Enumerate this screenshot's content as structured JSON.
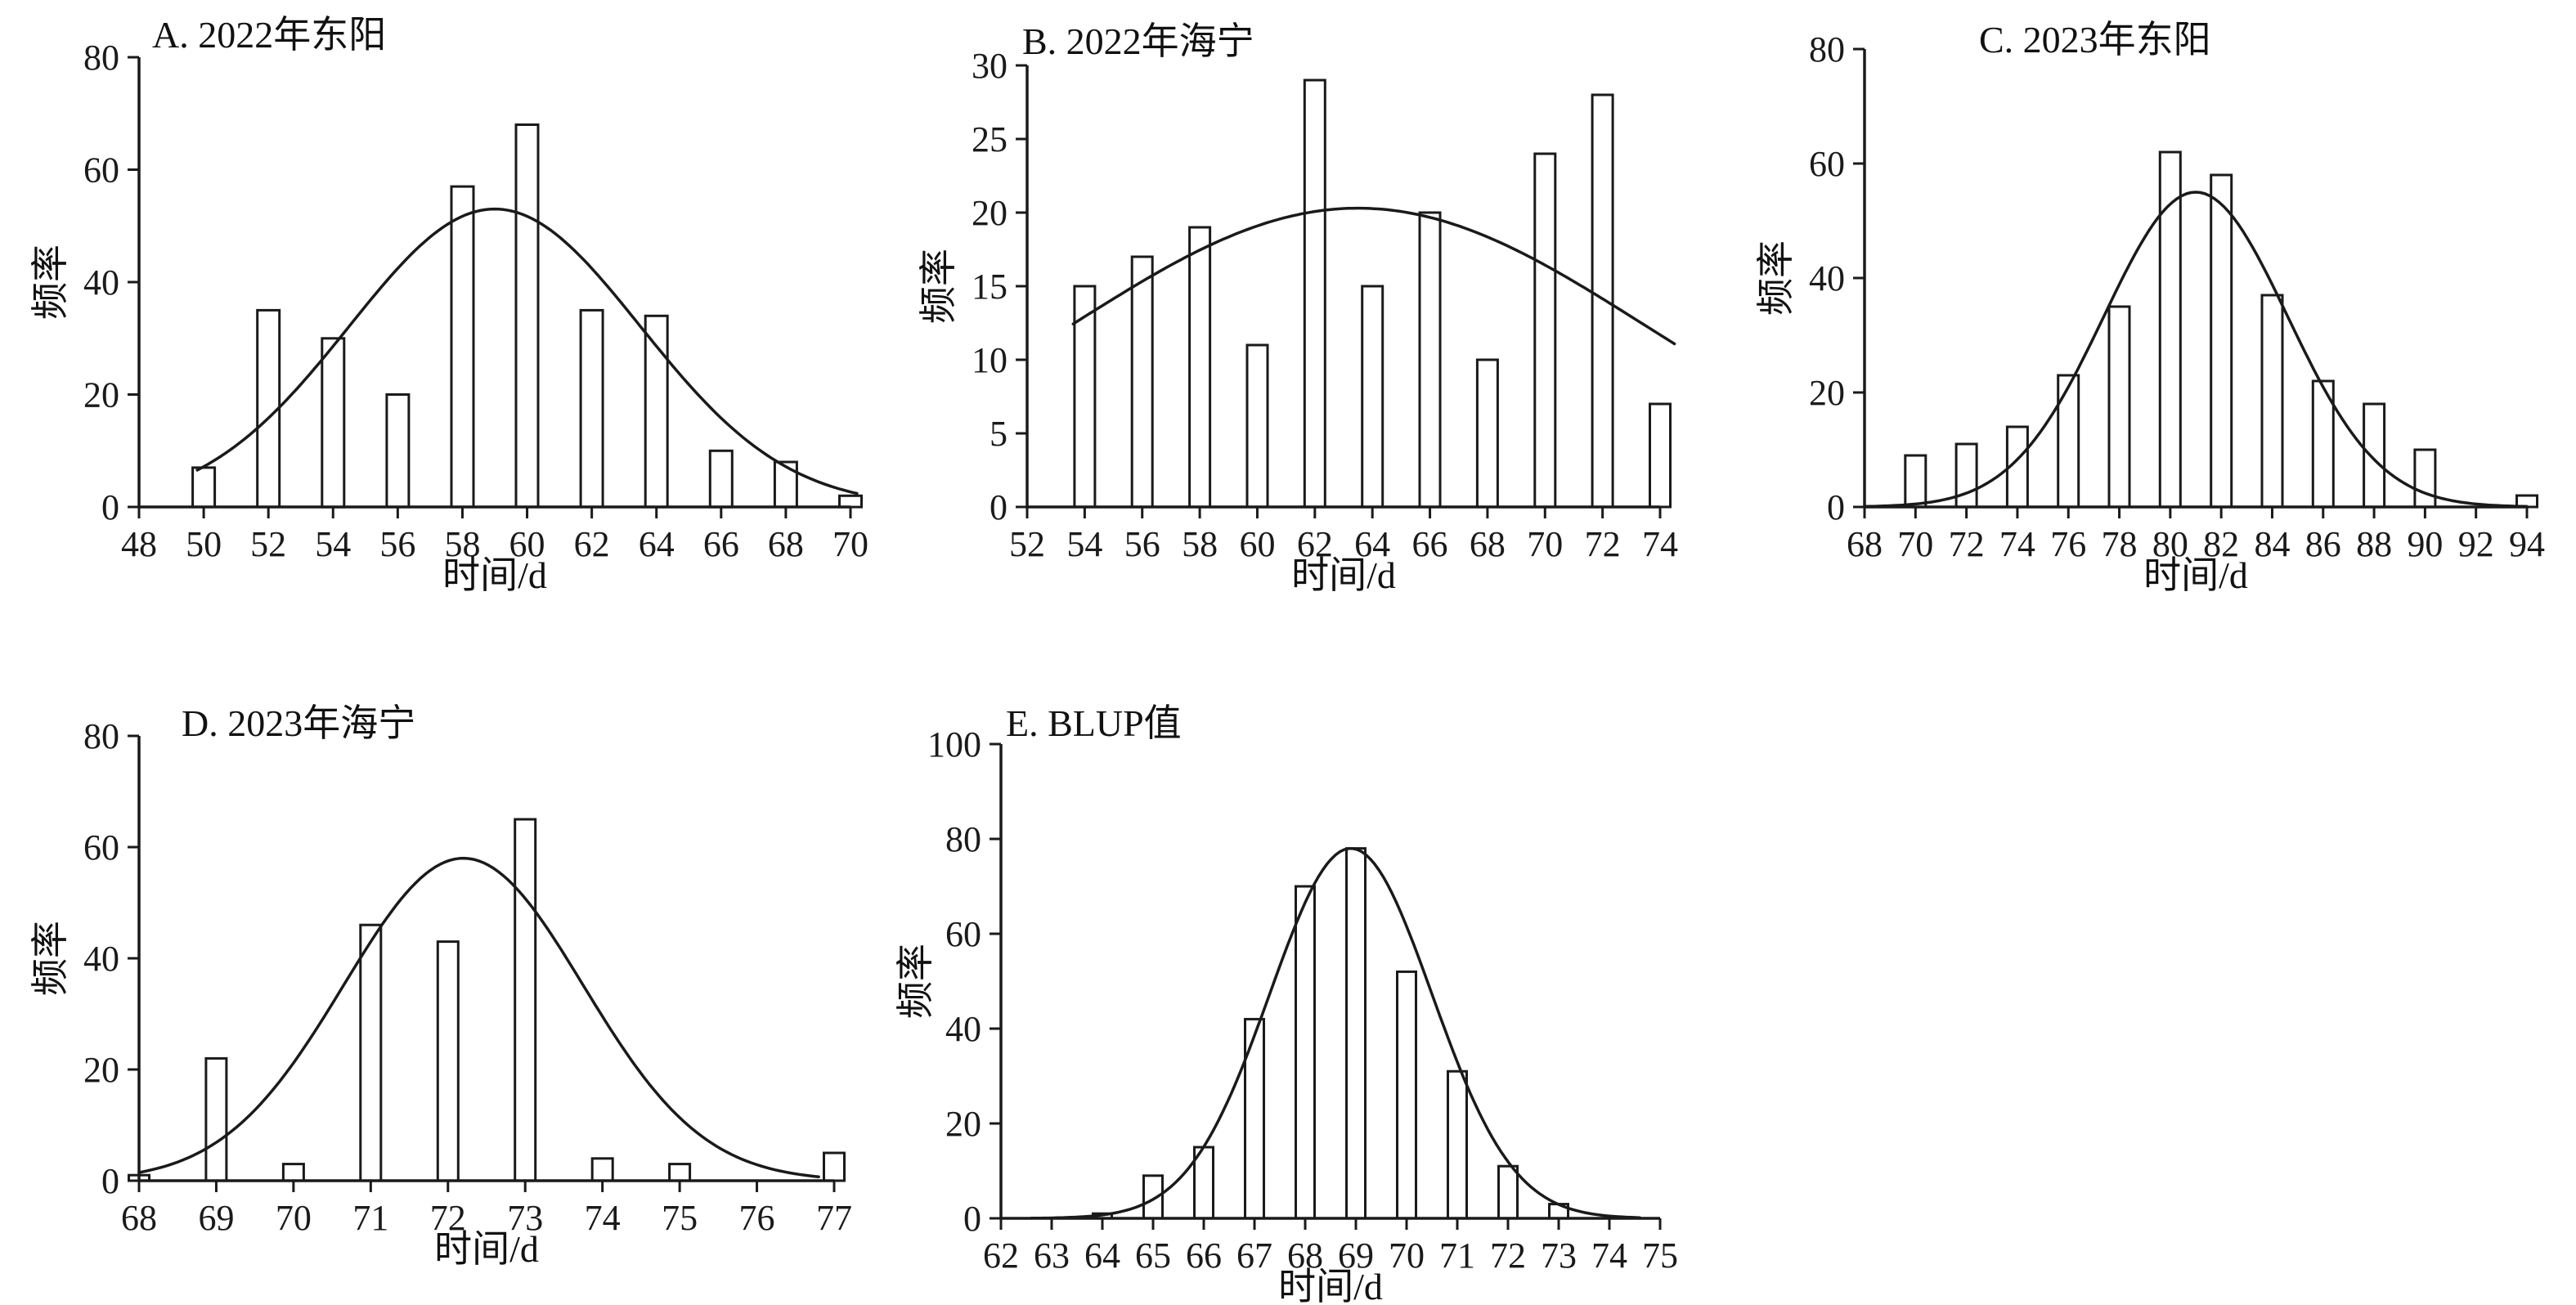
{
  "figure": {
    "background": "#ffffff",
    "ink_color": "#1a1a1a",
    "description": "频率直方图与正态拟合曲线 (5 panels)"
  },
  "chart_data": [
    {
      "id": "A",
      "type": "bar",
      "title": "A. 2022年东阳",
      "xlabel": "时间/d",
      "ylabel": "频率",
      "xlim": [
        48,
        70
      ],
      "ylim": [
        0,
        80
      ],
      "xticks": [
        48,
        50,
        52,
        54,
        56,
        58,
        60,
        62,
        64,
        66,
        68,
        70
      ],
      "yticks": [
        0,
        20,
        40,
        60,
        80
      ],
      "grid": false,
      "bars": {
        "x": [
          50,
          52,
          54,
          56,
          58,
          60,
          62,
          64,
          66,
          68,
          70
        ],
        "values": [
          7,
          35,
          30,
          20,
          57,
          68,
          35,
          34,
          10,
          8,
          2
        ]
      },
      "curve": {
        "shape": "gaussian",
        "mean": 59,
        "sd": 4.5,
        "peak": 53,
        "range": [
          49.8,
          70.2
        ]
      }
    },
    {
      "id": "B",
      "type": "bar",
      "title": "B. 2022年海宁",
      "xlabel": "时间/d",
      "ylabel": "频率",
      "xlim": [
        52,
        74
      ],
      "ylim": [
        0,
        30
      ],
      "xticks": [
        52,
        54,
        56,
        58,
        60,
        62,
        64,
        66,
        68,
        70,
        72,
        74
      ],
      "yticks": [
        0,
        5,
        10,
        15,
        20,
        25,
        30
      ],
      "grid": false,
      "bars": {
        "x": [
          54,
          56,
          58,
          60,
          62,
          64,
          66,
          68,
          70,
          72,
          74
        ],
        "values": [
          15,
          17,
          19,
          11,
          29,
          15,
          20,
          10,
          24,
          28,
          7
        ]
      },
      "curve": {
        "shape": "gaussian",
        "mean": 63.5,
        "sd": 10,
        "peak": 20.3,
        "range": [
          53.6,
          74.5
        ]
      }
    },
    {
      "id": "C",
      "type": "bar",
      "title": "C. 2023年东阳",
      "xlabel": "时间/d",
      "ylabel": "频率",
      "xlim": [
        68,
        94
      ],
      "ylim": [
        0,
        80
      ],
      "xticks": [
        68,
        70,
        72,
        74,
        76,
        78,
        80,
        82,
        84,
        86,
        88,
        90,
        92,
        94
      ],
      "yticks": [
        0,
        20,
        40,
        60,
        80
      ],
      "grid": false,
      "bars": {
        "x": [
          70,
          72,
          74,
          76,
          78,
          80,
          82,
          84,
          86,
          88,
          90,
          94
        ],
        "values": [
          9,
          11,
          14,
          23,
          35,
          62,
          58,
          37,
          22,
          18,
          10,
          2
        ]
      },
      "curve": {
        "shape": "gaussian",
        "mean": 81,
        "sd": 3.6,
        "peak": 55,
        "range": [
          68,
          94
        ]
      }
    },
    {
      "id": "D",
      "type": "bar",
      "title": "D. 2023年海宁",
      "xlabel": "时间/d",
      "ylabel": "频率",
      "xlim": [
        68,
        77
      ],
      "ylim": [
        0,
        80
      ],
      "xticks": [
        68,
        69,
        70,
        71,
        72,
        73,
        74,
        75,
        76,
        77
      ],
      "yticks": [
        0,
        20,
        40,
        60,
        80
      ],
      "grid": false,
      "bars": {
        "x": [
          68,
          69,
          70,
          71,
          72,
          73,
          74,
          75,
          77
        ],
        "values": [
          1,
          22,
          3,
          46,
          43,
          65,
          4,
          3,
          5
        ]
      },
      "curve": {
        "shape": "gaussian",
        "mean": 72.2,
        "sd": 1.55,
        "peak": 58,
        "range": [
          68,
          76.8
        ]
      }
    },
    {
      "id": "E",
      "type": "bar",
      "title": "E. BLUP值",
      "xlabel": "时间/d",
      "ylabel": "频率",
      "xlim": [
        62,
        75
      ],
      "ylim": [
        0,
        100
      ],
      "xticks": [
        62,
        63,
        64,
        65,
        66,
        67,
        68,
        69,
        70,
        71,
        72,
        73,
        74,
        75
      ],
      "yticks": [
        0,
        20,
        40,
        60,
        80,
        100
      ],
      "grid": false,
      "bars": {
        "x": [
          64,
          65,
          66,
          67,
          68,
          69,
          70,
          71,
          72,
          73
        ],
        "values": [
          1,
          9,
          15,
          42,
          70,
          78,
          52,
          31,
          11,
          3
        ]
      },
      "curve": {
        "shape": "gaussian",
        "mean": 68.9,
        "sd": 1.6,
        "peak": 78,
        "range": [
          62.6,
          74.6
        ]
      }
    }
  ]
}
